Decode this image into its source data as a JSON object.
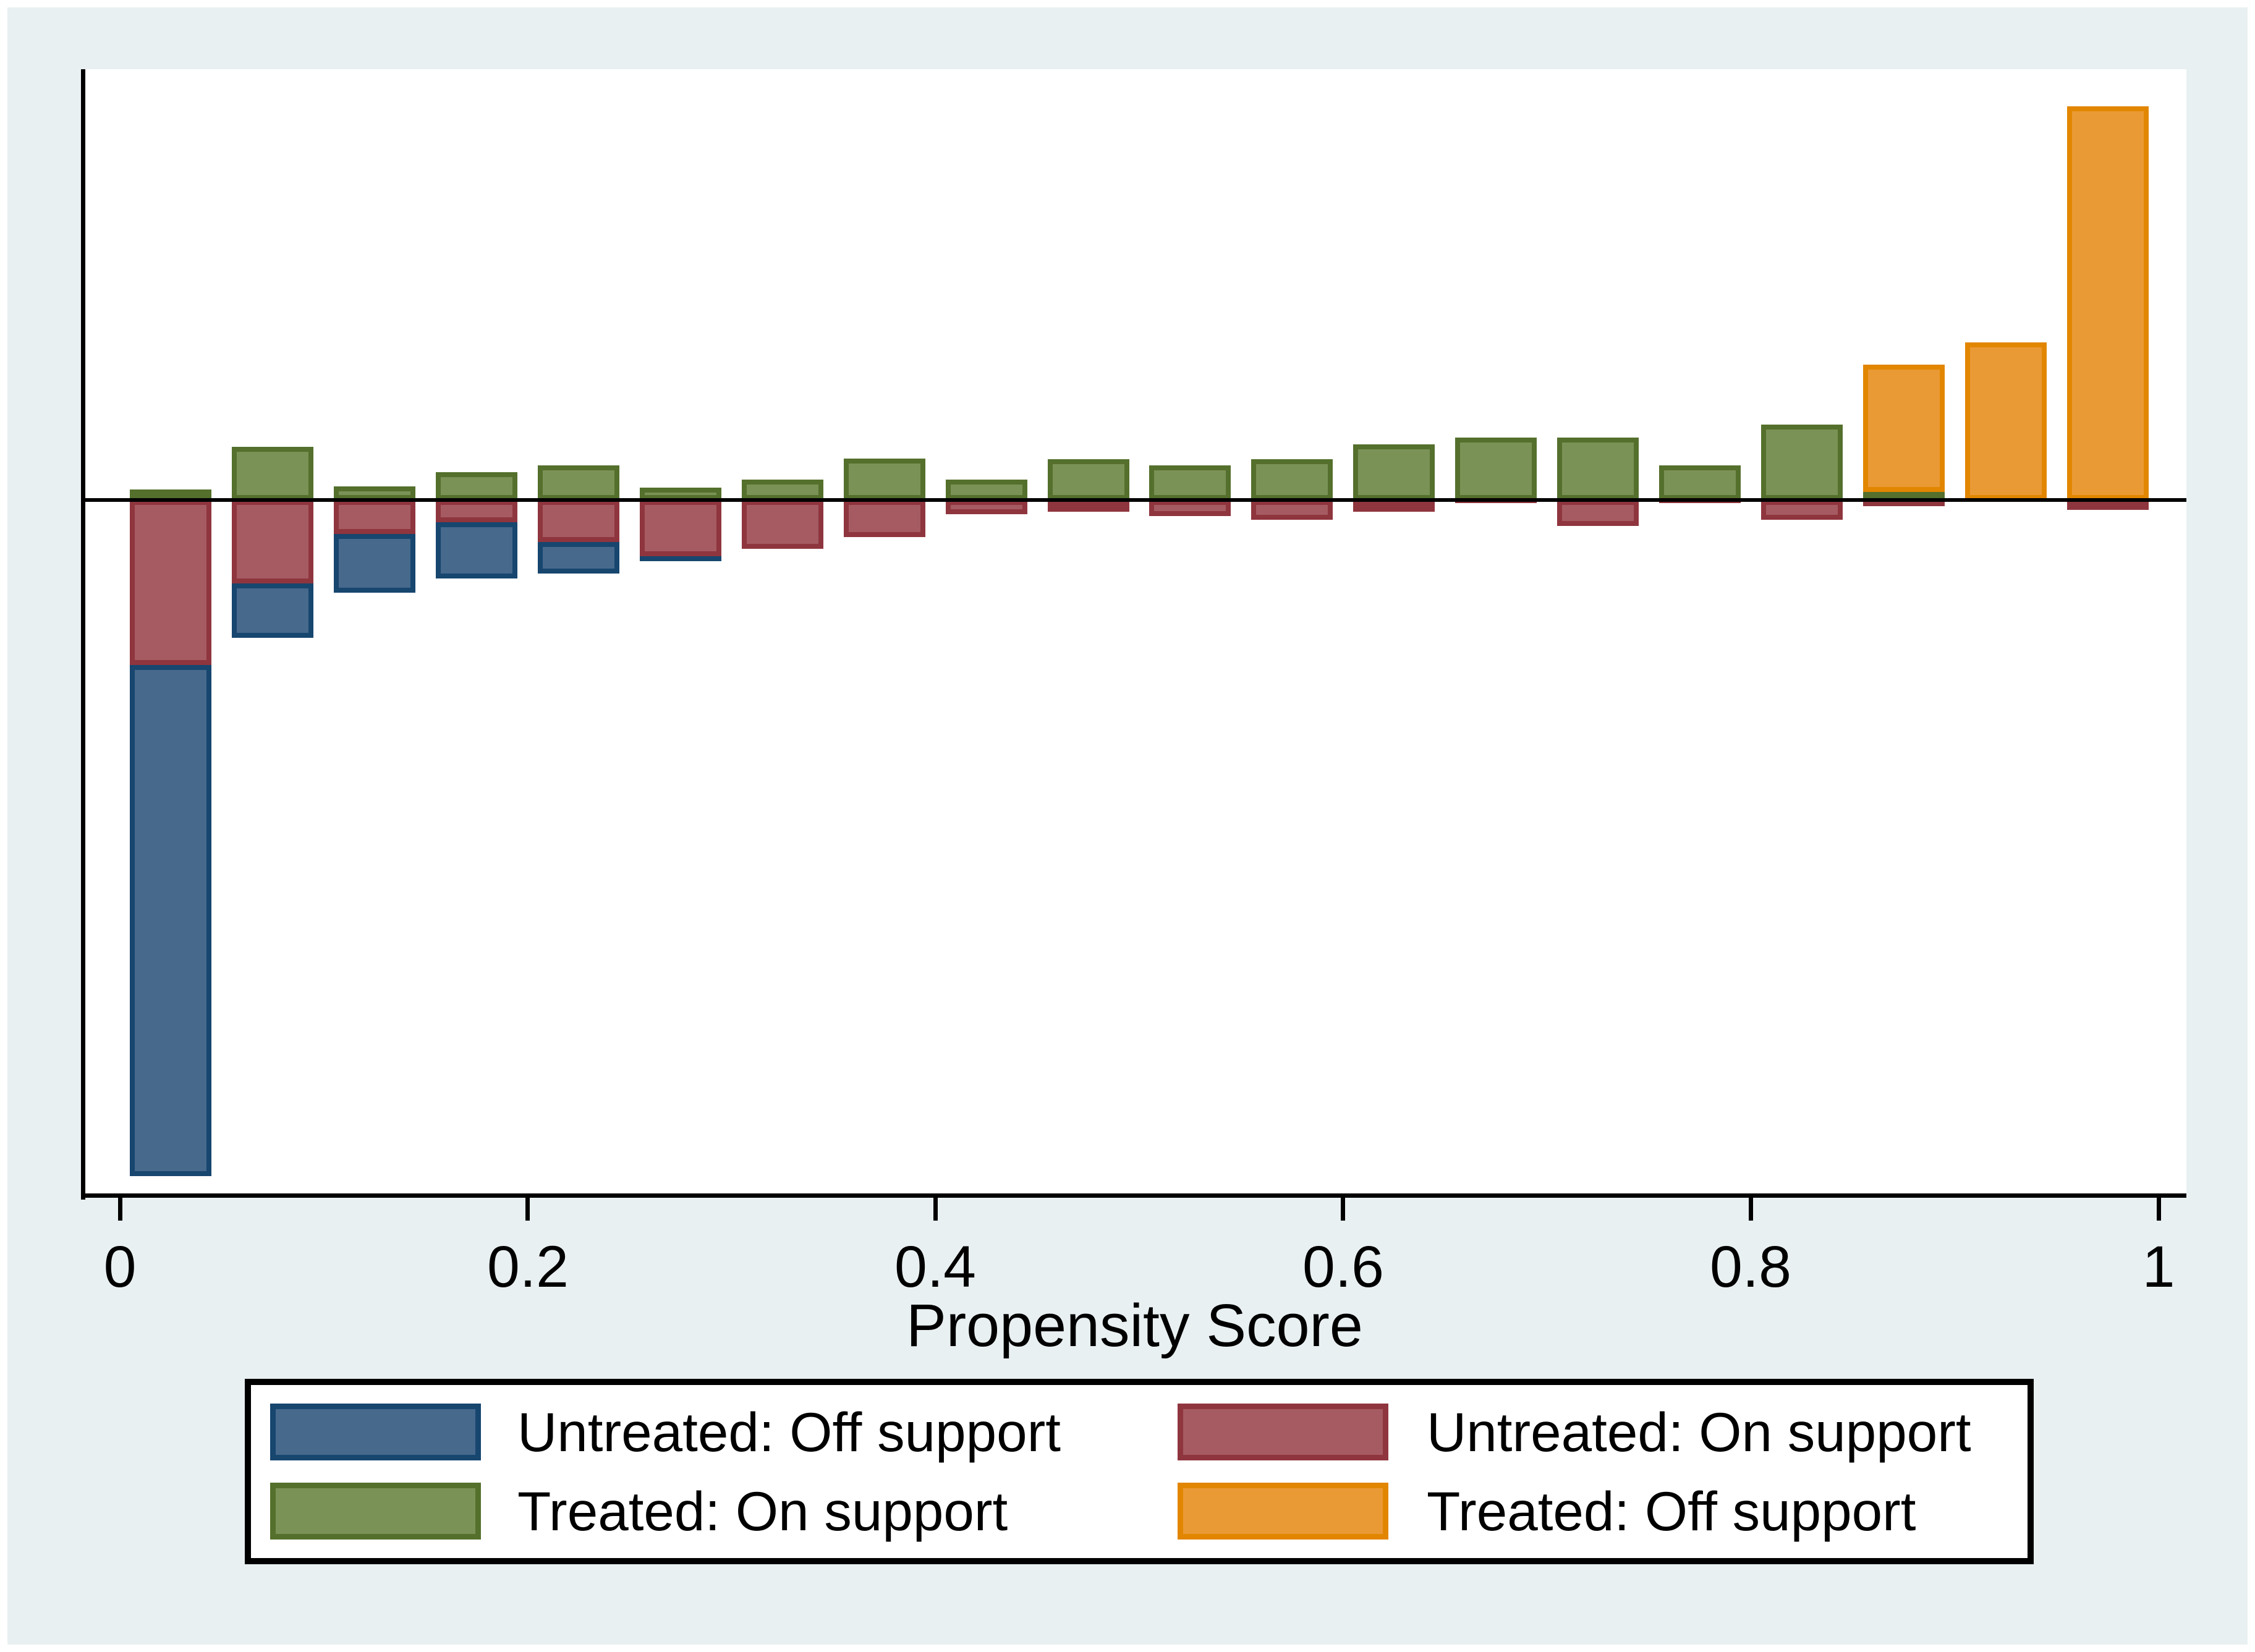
{
  "figure": {
    "background_color": "#e9f0f2",
    "plot_background_color": "#ffffff",
    "axis_color": "#000000"
  },
  "x_axis": {
    "title": "Propensity Score",
    "tick_labels": [
      "0",
      "0.2",
      "0.4",
      "0.6",
      "0.8",
      "1"
    ],
    "tick_values": [
      0,
      0.2,
      0.4,
      0.6,
      0.8,
      1
    ]
  },
  "legend": {
    "items": [
      {
        "label": "Untreated: Off support",
        "color_key": "untreated_off"
      },
      {
        "label": "Untreated: On support",
        "color_key": "untreated_on"
      },
      {
        "label": "Treated: On support",
        "color_key": "treated_on"
      },
      {
        "label": "Treated: Off support",
        "color_key": "treated_off"
      }
    ]
  },
  "colors": {
    "untreated_off_fill": "#47698c",
    "untreated_off_border": "#17466f",
    "untreated_on_fill": "#a65b62",
    "untreated_on_border": "#8f353e",
    "treated_on_fill": "#7b9257",
    "treated_on_border": "#54702c",
    "treated_off_fill": "#ea9a35",
    "treated_off_border": "#e28600"
  },
  "chart_data": {
    "type": "bar",
    "subtype": "mirrored-histogram",
    "title": "",
    "xlabel": "Propensity Score",
    "ylabel": "",
    "xlim": [
      0,
      1
    ],
    "bin_width": 0.05,
    "grid": false,
    "legend_position": "bottom",
    "units": "estimated fraction of sample per bin",
    "x_bin_centers": [
      0.025,
      0.075,
      0.125,
      0.175,
      0.225,
      0.275,
      0.325,
      0.375,
      0.425,
      0.475,
      0.525,
      0.575,
      0.625,
      0.675,
      0.725,
      0.775,
      0.825,
      0.875,
      0.925,
      0.975
    ],
    "series": [
      {
        "name": "Treated: On support",
        "side": "above",
        "stack_order": 1,
        "color_key": "treated_on",
        "values": [
          0.0079,
          0.0398,
          0.0102,
          0.0208,
          0.0259,
          0.0093,
          0.0153,
          0.031,
          0.0153,
          0.0306,
          0.0259,
          0.0306,
          0.0417,
          0.0468,
          0.0468,
          0.0259,
          0.0565,
          0.006,
          0,
          0
        ]
      },
      {
        "name": "Treated: Off support",
        "side": "above",
        "stack_order": 2,
        "color_key": "treated_off",
        "values": [
          0,
          0,
          0,
          0,
          0,
          0,
          0,
          0,
          0,
          0,
          0,
          0,
          0,
          0,
          0,
          0,
          0,
          0.0954,
          0.1181,
          0.2949
        ]
      },
      {
        "name": "Untreated: On support",
        "side": "below",
        "stack_order": 1,
        "color_key": "untreated_on",
        "values": [
          0.1236,
          0.0625,
          0.0255,
          0.0167,
          0.0315,
          0.0421,
          0.0366,
          0.0278,
          0.0106,
          0.0088,
          0.012,
          0.0148,
          0.0088,
          0.0023,
          0.0194,
          0.0023,
          0.0148,
          0.0046,
          0,
          0.0074
        ]
      },
      {
        "name": "Untreated: Off support",
        "side": "below",
        "stack_order": 2,
        "color_key": "untreated_off",
        "values": [
          0.3829,
          0.0407,
          0.044,
          0.0421,
          0.0236,
          0.0037,
          0,
          0,
          0,
          0,
          0,
          0,
          0,
          0,
          0,
          0,
          0,
          0,
          0,
          0
        ]
      }
    ]
  }
}
